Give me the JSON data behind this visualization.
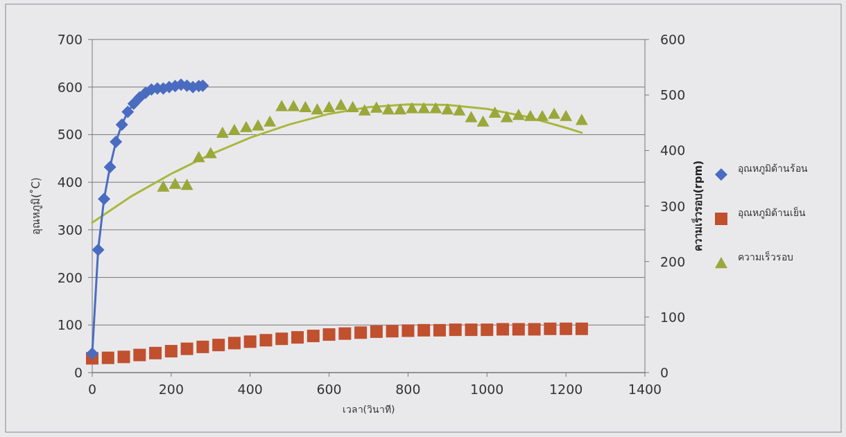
{
  "chart_data": {
    "type": "line",
    "xlabel": "เวลา(วินาที)",
    "ylabel": "อุณหภูมิ(˚C)",
    "y2label": "ความเร็วรอบ(rpm)",
    "xlim": [
      0,
      1400
    ],
    "xticks": [
      0,
      200,
      400,
      600,
      800,
      1000,
      1200,
      1400
    ],
    "ylim": [
      0,
      700
    ],
    "yticks": [
      0,
      100,
      200,
      300,
      400,
      500,
      600,
      700
    ],
    "y2lim": [
      0,
      600
    ],
    "y2ticks": [
      0,
      100,
      200,
      300,
      400,
      500,
      600
    ],
    "grid": "y",
    "legend": "right",
    "series": [
      {
        "name": "อุณหภูมิด้านร้อน",
        "type": "line",
        "marker": "diamond",
        "color": "#4a6cc0",
        "x": [
          0,
          15,
          30,
          45,
          60,
          75,
          90,
          105,
          120,
          135,
          150,
          165,
          180,
          195,
          210,
          225,
          240,
          255,
          270,
          280
        ],
        "values": [
          40,
          258,
          365,
          432,
          485,
          521,
          548,
          565,
          578,
          588,
          595,
          597,
          597,
          600,
          602,
          605,
          603,
          600,
          602,
          603
        ]
      },
      {
        "name": "อุณหภูมิด้านเย็น",
        "type": "scatter",
        "marker": "square",
        "color": "#c0502e",
        "x": [
          0,
          40,
          80,
          120,
          160,
          200,
          240,
          280,
          320,
          360,
          400,
          440,
          480,
          520,
          560,
          600,
          640,
          680,
          720,
          760,
          800,
          840,
          880,
          920,
          960,
          1000,
          1040,
          1080,
          1120,
          1160,
          1200,
          1240
        ],
        "values": [
          30,
          31,
          33,
          37,
          41,
          45,
          50,
          54,
          58,
          62,
          65,
          68,
          71,
          74,
          77,
          80,
          82,
          84,
          86,
          87,
          88,
          89,
          89,
          90,
          90,
          90,
          91,
          91,
          91,
          92,
          92,
          92
        ]
      },
      {
        "name": "ความเร็วรอบ",
        "type": "scatter",
        "marker": "triangle",
        "axis": "y2",
        "color": "#9aa83a",
        "x": [
          180,
          210,
          240,
          270,
          300,
          330,
          360,
          390,
          420,
          450,
          480,
          510,
          540,
          570,
          600,
          630,
          660,
          690,
          720,
          750,
          780,
          810,
          840,
          870,
          900,
          930,
          960,
          990,
          1020,
          1050,
          1080,
          1110,
          1140,
          1170,
          1200,
          1240
        ],
        "values": [
          335,
          340,
          338,
          388,
          395,
          432,
          437,
          442,
          445,
          452,
          480,
          480,
          478,
          474,
          478,
          482,
          478,
          472,
          477,
          474,
          474,
          476,
          476,
          476,
          474,
          472,
          460,
          452,
          468,
          460,
          464,
          462,
          462,
          466,
          462,
          455
        ]
      },
      {
        "type": "line",
        "marker": "none",
        "axis": "y2",
        "color": "#a8b83c",
        "x": [
          0,
          100,
          200,
          300,
          400,
          500,
          600,
          700,
          800,
          900,
          1000,
          1100,
          1200,
          1240
        ],
        "values": [
          270,
          318,
          358,
          393,
          423,
          447,
          466,
          478,
          483,
          482,
          475,
          461,
          441,
          432
        ]
      }
    ]
  }
}
